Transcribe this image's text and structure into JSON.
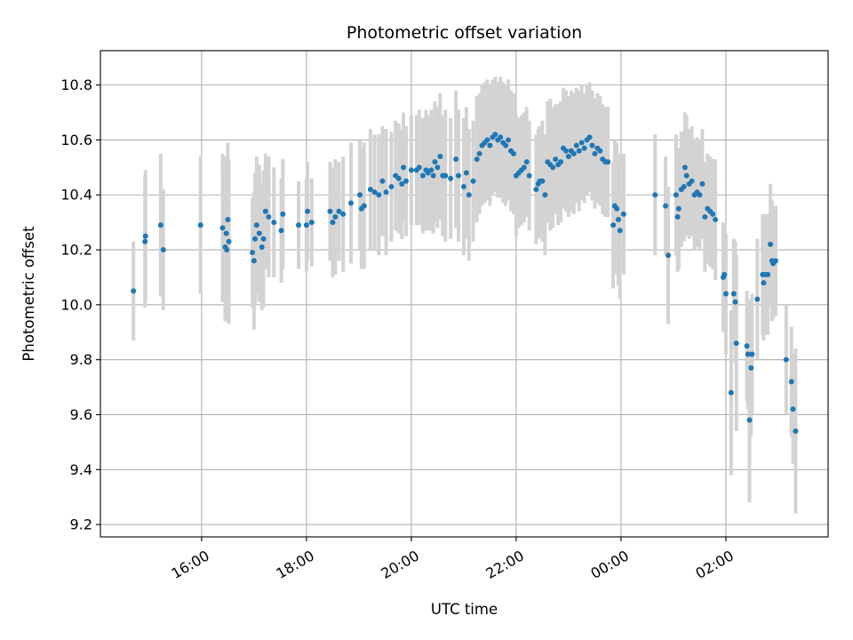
{
  "chart_data": {
    "type": "scatter",
    "title": "Photometric offset variation",
    "xlabel": "UTC time",
    "ylabel": "Photometric offset",
    "x_ticks": [
      "16:00",
      "18:00",
      "20:00",
      "22:00",
      "00:00",
      "02:00"
    ],
    "x_tick_hours": [
      16,
      18,
      20,
      22,
      24,
      26
    ],
    "xlim_hours": [
      14.07,
      27.95
    ],
    "y_ticks": [
      "9.2",
      "9.4",
      "9.6",
      "9.8",
      "10.0",
      "10.2",
      "10.4",
      "10.6",
      "10.8"
    ],
    "ylim": [
      9.155,
      10.925
    ],
    "grid": true,
    "colors": {
      "point": "#1f77b4",
      "error_bar": "#d3d3d3",
      "grid": "#b0b0b0"
    },
    "series": [
      {
        "points": [
          [
            14.7,
            10.05,
            0.18
          ],
          [
            14.92,
            10.23,
            0.24
          ],
          [
            14.93,
            10.25,
            0.24
          ],
          [
            15.22,
            10.29,
            0.26
          ],
          [
            15.27,
            10.2,
            0.22
          ],
          [
            15.98,
            10.29,
            0.25
          ],
          [
            16.4,
            10.28,
            0.27
          ],
          [
            16.45,
            10.21,
            0.27
          ],
          [
            16.47,
            10.26,
            0.28
          ],
          [
            16.48,
            10.2,
            0.26
          ],
          [
            16.5,
            10.31,
            0.28
          ],
          [
            16.52,
            10.23,
            0.3
          ],
          [
            16.97,
            10.19,
            0.2
          ],
          [
            17.0,
            10.16,
            0.25
          ],
          [
            17.02,
            10.24,
            0.24
          ],
          [
            17.05,
            10.29,
            0.25
          ],
          [
            17.1,
            10.26,
            0.25
          ],
          [
            17.15,
            10.21,
            0.23
          ],
          [
            17.18,
            10.24,
            0.25
          ],
          [
            17.22,
            10.34,
            0.21
          ],
          [
            17.28,
            10.32,
            0.22
          ],
          [
            17.38,
            10.3,
            0.2
          ],
          [
            17.52,
            10.27,
            0.19
          ],
          [
            17.55,
            10.33,
            0.2
          ],
          [
            17.85,
            10.29,
            0.16
          ],
          [
            18.0,
            10.29,
            0.17
          ],
          [
            18.02,
            10.34,
            0.18
          ],
          [
            18.1,
            10.3,
            0.16
          ],
          [
            18.45,
            10.34,
            0.18
          ],
          [
            18.5,
            10.3,
            0.2
          ],
          [
            18.55,
            10.32,
            0.21
          ],
          [
            18.62,
            10.34,
            0.18
          ],
          [
            18.7,
            10.33,
            0.21
          ],
          [
            18.85,
            10.37,
            0.22
          ],
          [
            19.02,
            10.4,
            0.2
          ],
          [
            19.05,
            10.35,
            0.22
          ],
          [
            19.1,
            10.36,
            0.23
          ],
          [
            19.22,
            10.42,
            0.22
          ],
          [
            19.3,
            10.41,
            0.21
          ],
          [
            19.38,
            10.4,
            0.22
          ],
          [
            19.45,
            10.45,
            0.2
          ],
          [
            19.52,
            10.41,
            0.23
          ],
          [
            19.62,
            10.43,
            0.2
          ],
          [
            19.7,
            10.47,
            0.2
          ],
          [
            19.76,
            10.46,
            0.2
          ],
          [
            19.82,
            10.44,
            0.2
          ],
          [
            19.85,
            10.5,
            0.2
          ],
          [
            19.9,
            10.45,
            0.2
          ],
          [
            20.0,
            10.49,
            0.2
          ],
          [
            20.1,
            10.49,
            0.2
          ],
          [
            20.15,
            10.5,
            0.21
          ],
          [
            20.22,
            10.47,
            0.21
          ],
          [
            20.28,
            10.49,
            0.22
          ],
          [
            20.32,
            10.48,
            0.21
          ],
          [
            20.38,
            10.49,
            0.22
          ],
          [
            20.42,
            10.47,
            0.21
          ],
          [
            20.45,
            10.52,
            0.22
          ],
          [
            20.5,
            10.5,
            0.22
          ],
          [
            20.55,
            10.54,
            0.23
          ],
          [
            20.6,
            10.47,
            0.22
          ],
          [
            20.65,
            10.47,
            0.24
          ],
          [
            20.75,
            10.46,
            0.22
          ],
          [
            20.85,
            10.53,
            0.25
          ],
          [
            20.9,
            10.47,
            0.24
          ],
          [
            21.0,
            10.43,
            0.25
          ],
          [
            21.05,
            10.48,
            0.24
          ],
          [
            21.1,
            10.4,
            0.24
          ],
          [
            21.18,
            10.45,
            0.22
          ],
          [
            21.25,
            10.53,
            0.23
          ],
          [
            21.3,
            10.55,
            0.22
          ],
          [
            21.35,
            10.58,
            0.22
          ],
          [
            21.4,
            10.59,
            0.22
          ],
          [
            21.45,
            10.6,
            0.22
          ],
          [
            21.5,
            10.58,
            0.22
          ],
          [
            21.55,
            10.61,
            0.21
          ],
          [
            21.6,
            10.62,
            0.21
          ],
          [
            21.65,
            10.6,
            0.21
          ],
          [
            21.7,
            10.61,
            0.22
          ],
          [
            21.75,
            10.59,
            0.22
          ],
          [
            21.8,
            10.58,
            0.22
          ],
          [
            21.85,
            10.6,
            0.22
          ],
          [
            21.9,
            10.56,
            0.22
          ],
          [
            21.95,
            10.55,
            0.22
          ],
          [
            22.0,
            10.47,
            0.22
          ],
          [
            22.05,
            10.48,
            0.2
          ],
          [
            22.1,
            10.49,
            0.2
          ],
          [
            22.15,
            10.5,
            0.2
          ],
          [
            22.2,
            10.52,
            0.2
          ],
          [
            22.25,
            10.47,
            0.2
          ],
          [
            22.38,
            10.42,
            0.2
          ],
          [
            22.42,
            10.44,
            0.2
          ],
          [
            22.45,
            10.45,
            0.2
          ],
          [
            22.5,
            10.45,
            0.22
          ],
          [
            22.55,
            10.4,
            0.22
          ],
          [
            22.6,
            10.52,
            0.22
          ],
          [
            22.65,
            10.51,
            0.24
          ],
          [
            22.7,
            10.5,
            0.22
          ],
          [
            22.75,
            10.53,
            0.2
          ],
          [
            22.8,
            10.51,
            0.22
          ],
          [
            22.85,
            10.52,
            0.22
          ],
          [
            22.9,
            10.57,
            0.22
          ],
          [
            22.95,
            10.56,
            0.22
          ],
          [
            23.0,
            10.54,
            0.22
          ],
          [
            23.05,
            10.56,
            0.22
          ],
          [
            23.1,
            10.55,
            0.22
          ],
          [
            23.15,
            10.58,
            0.21
          ],
          [
            23.2,
            10.56,
            0.22
          ],
          [
            23.25,
            10.59,
            0.21
          ],
          [
            23.3,
            10.57,
            0.2
          ],
          [
            23.35,
            10.6,
            0.2
          ],
          [
            23.4,
            10.61,
            0.2
          ],
          [
            23.45,
            10.58,
            0.2
          ],
          [
            23.5,
            10.55,
            0.2
          ],
          [
            23.55,
            10.57,
            0.2
          ],
          [
            23.6,
            10.56,
            0.2
          ],
          [
            23.65,
            10.53,
            0.2
          ],
          [
            23.7,
            10.52,
            0.2
          ],
          [
            23.75,
            10.52,
            0.2
          ],
          [
            23.85,
            10.29,
            0.23
          ],
          [
            23.88,
            10.36,
            0.24
          ],
          [
            23.92,
            10.35,
            0.24
          ],
          [
            23.95,
            10.31,
            0.24
          ],
          [
            23.98,
            10.27,
            0.25
          ],
          [
            24.05,
            10.33,
            0.22
          ],
          [
            24.65,
            10.4,
            0.22
          ],
          [
            24.85,
            10.36,
            0.18
          ],
          [
            24.9,
            10.18,
            0.25
          ],
          [
            25.05,
            10.4,
            0.22
          ],
          [
            25.08,
            10.32,
            0.2
          ],
          [
            25.1,
            10.35,
            0.22
          ],
          [
            25.15,
            10.42,
            0.21
          ],
          [
            25.2,
            10.43,
            0.2
          ],
          [
            25.22,
            10.5,
            0.2
          ],
          [
            25.25,
            10.47,
            0.22
          ],
          [
            25.3,
            10.44,
            0.2
          ],
          [
            25.35,
            10.45,
            0.2
          ],
          [
            25.4,
            10.4,
            0.2
          ],
          [
            25.45,
            10.41,
            0.2
          ],
          [
            25.5,
            10.4,
            0.2
          ],
          [
            25.55,
            10.44,
            0.2
          ],
          [
            25.6,
            10.32,
            0.2
          ],
          [
            25.65,
            10.35,
            0.2
          ],
          [
            25.7,
            10.34,
            0.2
          ],
          [
            25.75,
            10.33,
            0.2
          ],
          [
            25.8,
            10.31,
            0.22
          ],
          [
            25.95,
            10.1,
            0.2
          ],
          [
            25.97,
            10.11,
            0.18
          ],
          [
            26.0,
            10.04,
            0.22
          ],
          [
            26.1,
            9.68,
            0.3
          ],
          [
            26.15,
            10.04,
            0.2
          ],
          [
            26.18,
            10.01,
            0.22
          ],
          [
            26.2,
            9.86,
            0.32
          ],
          [
            26.4,
            9.85,
            0.2
          ],
          [
            26.42,
            9.82,
            0.2
          ],
          [
            26.45,
            9.58,
            0.3
          ],
          [
            26.48,
            9.77,
            0.25
          ],
          [
            26.5,
            9.82,
            0.22
          ],
          [
            26.6,
            10.02,
            0.22
          ],
          [
            26.7,
            10.11,
            0.22
          ],
          [
            26.72,
            10.08,
            0.21
          ],
          [
            26.75,
            10.11,
            0.22
          ],
          [
            26.8,
            10.11,
            0.22
          ],
          [
            26.85,
            10.22,
            0.22
          ],
          [
            26.88,
            10.16,
            0.22
          ],
          [
            26.9,
            10.15,
            0.2
          ],
          [
            26.95,
            10.16,
            0.2
          ],
          [
            27.15,
            9.8,
            0.2
          ],
          [
            27.25,
            9.72,
            0.2
          ],
          [
            27.28,
            9.62,
            0.2
          ],
          [
            27.33,
            9.54,
            0.3
          ]
        ]
      }
    ]
  }
}
